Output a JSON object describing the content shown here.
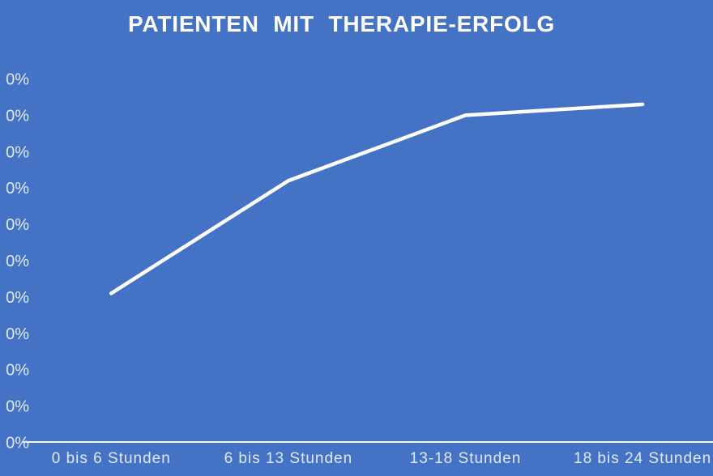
{
  "page": {
    "background_color": "#4472C4"
  },
  "chart_data": {
    "type": "line",
    "title": "PATIENTEN MIT THERAPIE-ERFOLG",
    "categories": [
      "0 bis 6 Stunden",
      "6 bis 13 Stunden",
      "13-18 Stunden",
      "18 bis 24 Stunden"
    ],
    "values": [
      41,
      72,
      90,
      93
    ],
    "xlabel": "",
    "ylabel": "",
    "ylim": [
      0,
      100
    ],
    "ytick_step": 10,
    "ytick_labels_visible": [
      "0%",
      "0%",
      "0%",
      "0%",
      "0%",
      "0%",
      "0%",
      "0%",
      "0%",
      "0%",
      "0%"
    ],
    "ytick_labels_cropped_at_left_edge": true,
    "grid": false,
    "drop_lines": true,
    "legend": "none",
    "line_color": "#FFFFFF",
    "axis_line_color": "#FFFFFF",
    "tick_label_color": "#E2E9F6",
    "background_color": "#4472C4",
    "title_color": "#FFFFFF"
  }
}
